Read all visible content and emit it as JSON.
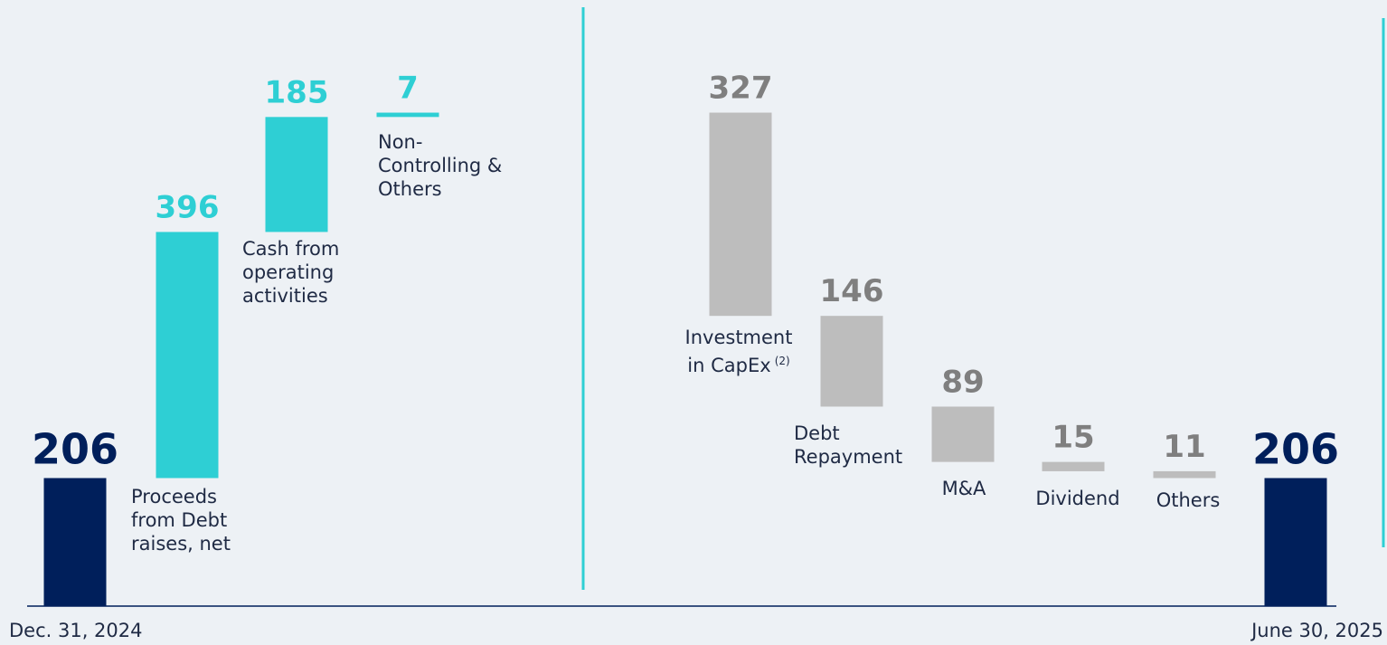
{
  "chart_data": {
    "type": "waterfall",
    "categories": [
      "Dec. 31, 2024",
      "Proceeds\nfrom Debt\nraises, net",
      "Cash from\noperating\nactivities",
      "Non-\nControlling &\nOthers",
      "Investment\nin CapEx",
      "Debt\nRepayment",
      "M&A",
      "Dividend",
      "Others",
      "June 30, 2025"
    ],
    "category_notes": [
      null,
      null,
      null,
      null,
      "(2)",
      null,
      null,
      null,
      null,
      null
    ],
    "values": [
      206,
      396,
      185,
      7,
      327,
      146,
      89,
      15,
      11,
      206
    ],
    "measure": [
      "total",
      "increase",
      "increase",
      "increase",
      "decrease",
      "decrease",
      "decrease",
      "decrease",
      "decrease",
      "total"
    ],
    "colors": {
      "total": "#001f5b",
      "increase": "#2ecfd4",
      "decrease": "#bdbdbd"
    },
    "label_colors": {
      "total": "#001f5b",
      "increase": "#2ecfd4",
      "decrease": "#7f7f7f"
    }
  }
}
